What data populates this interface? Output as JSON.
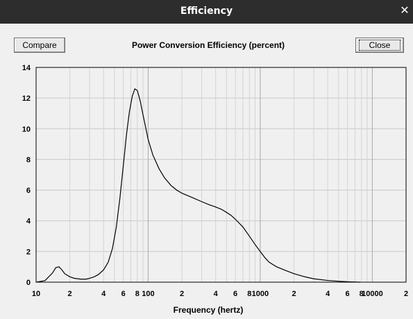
{
  "window": {
    "title": "Efficiency",
    "close_icon": "close-icon"
  },
  "buttons": {
    "compare": "Compare",
    "close": "Close"
  },
  "chart_data": {
    "type": "line",
    "title": "Power Conversion Efficiency (percent)",
    "xlabel": "Frequency (hertz)",
    "ylabel": "",
    "xscale": "log",
    "xlim": [
      10,
      20000
    ],
    "ylim": [
      0,
      14
    ],
    "grid": true,
    "yticks": [
      "0",
      "2",
      "4",
      "6",
      "8",
      "10",
      "12",
      "14"
    ],
    "xticks": [
      {
        "value": 10,
        "label": "10"
      },
      {
        "value": 20,
        "label": "2"
      },
      {
        "value": 40,
        "label": "4"
      },
      {
        "value": 60,
        "label": "6"
      },
      {
        "value": 80,
        "label": "8"
      },
      {
        "value": 100,
        "label": "100"
      },
      {
        "value": 200,
        "label": "2"
      },
      {
        "value": 400,
        "label": "4"
      },
      {
        "value": 600,
        "label": "6"
      },
      {
        "value": 800,
        "label": "8"
      },
      {
        "value": 1000,
        "label": "1000"
      },
      {
        "value": 2000,
        "label": "2"
      },
      {
        "value": 4000,
        "label": "4"
      },
      {
        "value": 6000,
        "label": "6"
      },
      {
        "value": 8000,
        "label": "8"
      },
      {
        "value": 10000,
        "label": "10000"
      },
      {
        "value": 20000,
        "label": "2"
      }
    ],
    "series": [
      {
        "x": [
          10,
          12,
          14,
          15,
          16,
          17,
          18,
          20,
          22,
          25,
          28,
          30,
          33,
          36,
          40,
          44,
          48,
          52,
          56,
          60,
          64,
          68,
          72,
          76,
          80,
          85,
          90,
          100,
          110,
          125,
          140,
          160,
          180,
          200,
          250,
          300,
          350,
          400,
          450,
          500,
          550,
          600,
          700,
          800,
          900,
          1000,
          1100,
          1200,
          1400,
          1700,
          2000,
          2500,
          3000,
          4000,
          5000,
          6000,
          7000,
          7800
        ],
        "y": [
          0.0,
          0.1,
          0.6,
          0.95,
          1.0,
          0.8,
          0.55,
          0.35,
          0.25,
          0.2,
          0.2,
          0.25,
          0.35,
          0.5,
          0.8,
          1.3,
          2.2,
          3.6,
          5.5,
          7.6,
          9.6,
          11.1,
          12.1,
          12.6,
          12.5,
          11.8,
          10.9,
          9.3,
          8.3,
          7.4,
          6.8,
          6.3,
          6.0,
          5.8,
          5.5,
          5.25,
          5.05,
          4.9,
          4.75,
          4.55,
          4.35,
          4.1,
          3.6,
          3.0,
          2.45,
          2.0,
          1.6,
          1.3,
          1.0,
          0.75,
          0.55,
          0.35,
          0.22,
          0.11,
          0.06,
          0.03,
          0.01,
          0.0
        ]
      }
    ]
  }
}
